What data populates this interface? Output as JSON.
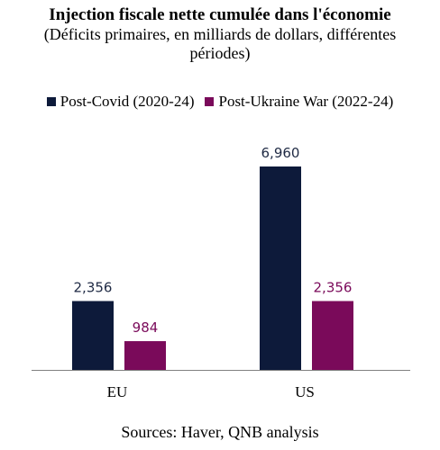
{
  "chart_data": {
    "type": "bar",
    "title": "Injection fiscale nette cumulée dans l'économie",
    "subtitle": "(Déficits primaires, en milliards de dollars, différentes périodes)",
    "categories": [
      "EU",
      "US"
    ],
    "series": [
      {
        "name": "Post-Covid (2020-24)",
        "values": [
          2356,
          6960
        ],
        "labels": [
          "2,356",
          "6,960"
        ],
        "color": "#0d1a3a"
      },
      {
        "name": "Post-Ukraine War (2022-24)",
        "values": [
          984,
          2356
        ],
        "labels": [
          "984",
          "2,356"
        ],
        "color": "#7a0a5a"
      }
    ],
    "ylim": [
      0,
      8000
    ],
    "grid": false,
    "legend": "top-center",
    "xlabel": "",
    "ylabel": ""
  },
  "source": "Sources: Haver, QNB analysis"
}
